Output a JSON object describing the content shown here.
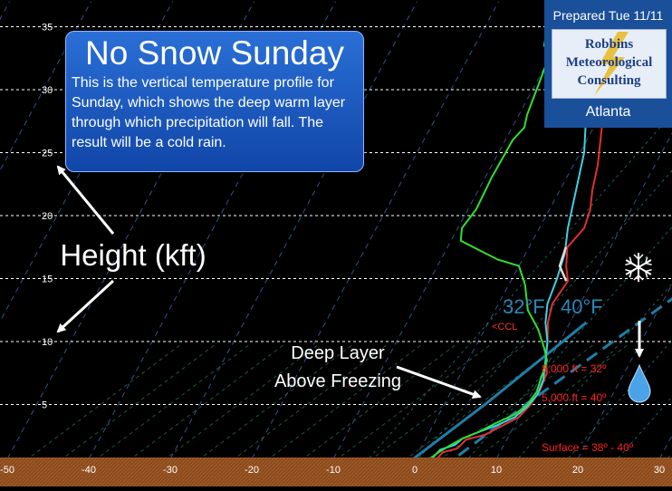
{
  "chart_data": {
    "type": "line",
    "y_axis": {
      "label": "Height (kft)",
      "ticks": [
        5,
        10,
        15,
        20,
        25,
        30,
        35
      ],
      "ylim": [
        0,
        37
      ]
    },
    "x_axis": {
      "ticks": [
        -50,
        -40,
        -30,
        -20,
        -10,
        0,
        10,
        20,
        30
      ],
      "xlim": [
        -51,
        32
      ]
    },
    "series": [
      {
        "color": "#e03030",
        "points": [
          [
            -9,
            37
          ],
          [
            -8,
            34
          ],
          [
            -5,
            31
          ],
          [
            -3,
            29
          ],
          [
            1,
            27
          ],
          [
            2,
            25.5
          ],
          [
            3,
            24
          ],
          [
            4,
            22
          ],
          [
            5,
            20.5
          ],
          [
            5.5,
            19
          ],
          [
            4.7,
            17.5
          ],
          [
            5.8,
            16
          ],
          [
            7,
            14.8
          ],
          [
            6.6,
            13
          ],
          [
            7.3,
            11.5
          ],
          [
            8.5,
            10
          ],
          [
            9.4,
            8.7
          ],
          [
            10.5,
            7.5
          ],
          [
            10.8,
            6.2
          ],
          [
            10.6,
            5
          ],
          [
            10,
            4
          ],
          [
            8.5,
            3.3
          ],
          [
            7,
            2.6
          ],
          [
            5,
            2.2
          ],
          [
            4.5,
            1.5
          ],
          [
            3,
            1.2
          ],
          [
            2.5,
            0.4
          ]
        ]
      },
      {
        "color": "#40d0e0",
        "points": [
          [
            -9,
            37
          ],
          [
            -8,
            34
          ],
          [
            -5.5,
            31
          ],
          [
            -3.5,
            29
          ],
          [
            -1,
            27
          ],
          [
            0.5,
            25
          ],
          [
            1.5,
            23
          ],
          [
            2.5,
            21
          ],
          [
            3.5,
            19
          ],
          [
            4.8,
            17
          ],
          [
            5.5,
            15
          ],
          [
            6,
            13
          ],
          [
            7,
            11.5
          ],
          [
            8.5,
            10
          ],
          [
            9.5,
            8.5
          ],
          [
            10.5,
            7
          ],
          [
            10.8,
            5.8
          ],
          [
            10.3,
            4.8
          ],
          [
            9.5,
            4
          ],
          [
            8,
            3.4
          ],
          [
            6,
            2.8
          ],
          [
            4.5,
            2.3
          ],
          [
            4,
            1.8
          ],
          [
            2.5,
            1.4
          ],
          [
            2,
            0.6
          ]
        ]
      },
      {
        "color": "#30e030",
        "points": [
          [
            -12.7,
            37
          ],
          [
            -12.3,
            35
          ],
          [
            -11.5,
            33.5
          ],
          [
            -10.5,
            33
          ],
          [
            -10,
            32
          ],
          [
            -9.5,
            30
          ],
          [
            -9,
            28
          ],
          [
            -8.5,
            27
          ],
          [
            -9.1,
            26
          ],
          [
            -9.2,
            23
          ],
          [
            -9,
            20.5
          ],
          [
            -9.5,
            19
          ],
          [
            -8.8,
            18
          ],
          [
            -3,
            16.5
          ],
          [
            0,
            16
          ],
          [
            2,
            14.5
          ],
          [
            4,
            12.5
          ],
          [
            6.5,
            11
          ],
          [
            8.5,
            9.5
          ],
          [
            9.7,
            8.5
          ],
          [
            10,
            7.5
          ],
          [
            10.5,
            6
          ],
          [
            10.2,
            5
          ],
          [
            9.3,
            4.2
          ],
          [
            7.5,
            3.5
          ],
          [
            6,
            2.8
          ],
          [
            4.5,
            2.3
          ],
          [
            3.5,
            1.8
          ],
          [
            2.5,
            1.2
          ],
          [
            1.5,
            0.5
          ]
        ]
      },
      {
        "color": "#dddddd",
        "points": [
          [
            4.5,
            17.5
          ],
          [
            5,
            16
          ],
          [
            6.8,
            14.8
          ]
        ]
      }
    ],
    "reference_lines": [
      {
        "label": "32°F",
        "color": "#1e7fa8",
        "points": [
          [
            -1,
            0
          ],
          [
            5,
            5
          ],
          [
            12,
            11.5
          ]
        ]
      },
      {
        "label": "40°F",
        "color": "#1e7fa8",
        "dashed": true,
        "points": [
          [
            4,
            0
          ],
          [
            10,
            5
          ],
          [
            27,
            18
          ]
        ]
      }
    ],
    "annotations": [
      {
        "text": "<CCL",
        "color": "#ff3030"
      },
      {
        "text": "8,000 ft = 32º",
        "color": "#ff2020"
      },
      {
        "text": "5,000 ft = 40º",
        "color": "#ff2020"
      },
      {
        "text": "Surface = 38º - 40º",
        "color": "#ff2020"
      },
      {
        "text": "Deep Layer",
        "color": "#ffffff"
      },
      {
        "text": "Above Freezing",
        "color": "#ffffff"
      },
      {
        "text": "Height (kft)",
        "color": "#ffffff"
      }
    ],
    "grid": true
  },
  "callout": {
    "title": "No Snow Sunday",
    "body": "This is the vertical temperature profile for Sunday, which shows the deep warm layer through which precipitation will fall. The result will be a cold rain."
  },
  "brand": {
    "prepared": "Prepared Tue 11/11",
    "company": [
      "Robbins",
      "Meteorological",
      "Consulting"
    ],
    "city": "Atlanta"
  },
  "colors": {
    "brand_bg": "#1a4f9a",
    "ground": "#8a4a1c",
    "callout_bg": "#1b5fc4"
  },
  "icons": [
    "snowflake-icon",
    "raindrop-icon",
    "lightning-bolt-icon",
    "arrow-icon"
  ]
}
